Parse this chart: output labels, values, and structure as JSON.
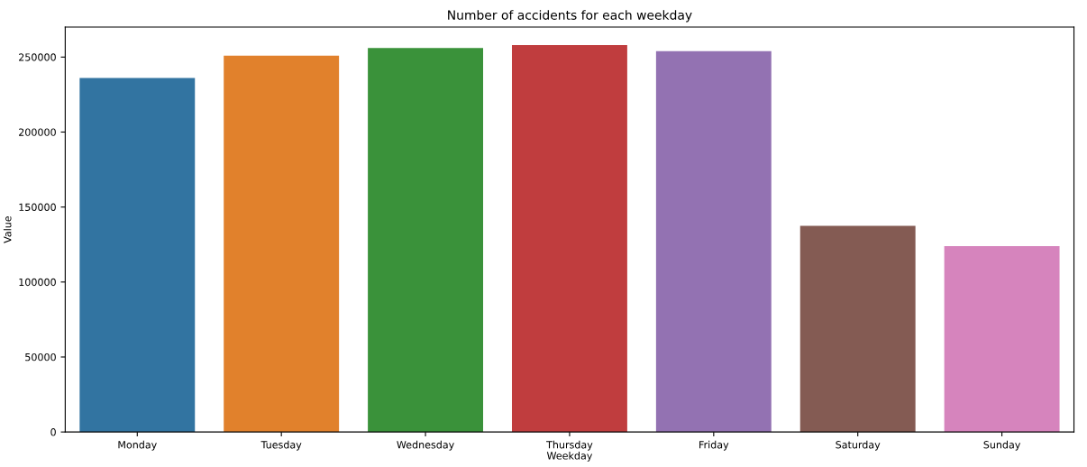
{
  "chart_data": {
    "type": "bar",
    "title": "Number of accidents for each weekday",
    "xlabel": "Weekday",
    "ylabel": "Value",
    "categories": [
      "Monday",
      "Tuesday",
      "Wednesday",
      "Thursday",
      "Friday",
      "Saturday",
      "Sunday"
    ],
    "values": [
      236000,
      251000,
      256000,
      258000,
      254000,
      137500,
      124000
    ],
    "colors": [
      "#3274a1",
      "#e1812c",
      "#3a923a",
      "#c03d3e",
      "#9372b2",
      "#845b53",
      "#d684bd"
    ],
    "ylim": [
      0,
      270000
    ],
    "yticks": [
      0,
      50000,
      100000,
      150000,
      200000,
      250000
    ],
    "grid": false
  }
}
